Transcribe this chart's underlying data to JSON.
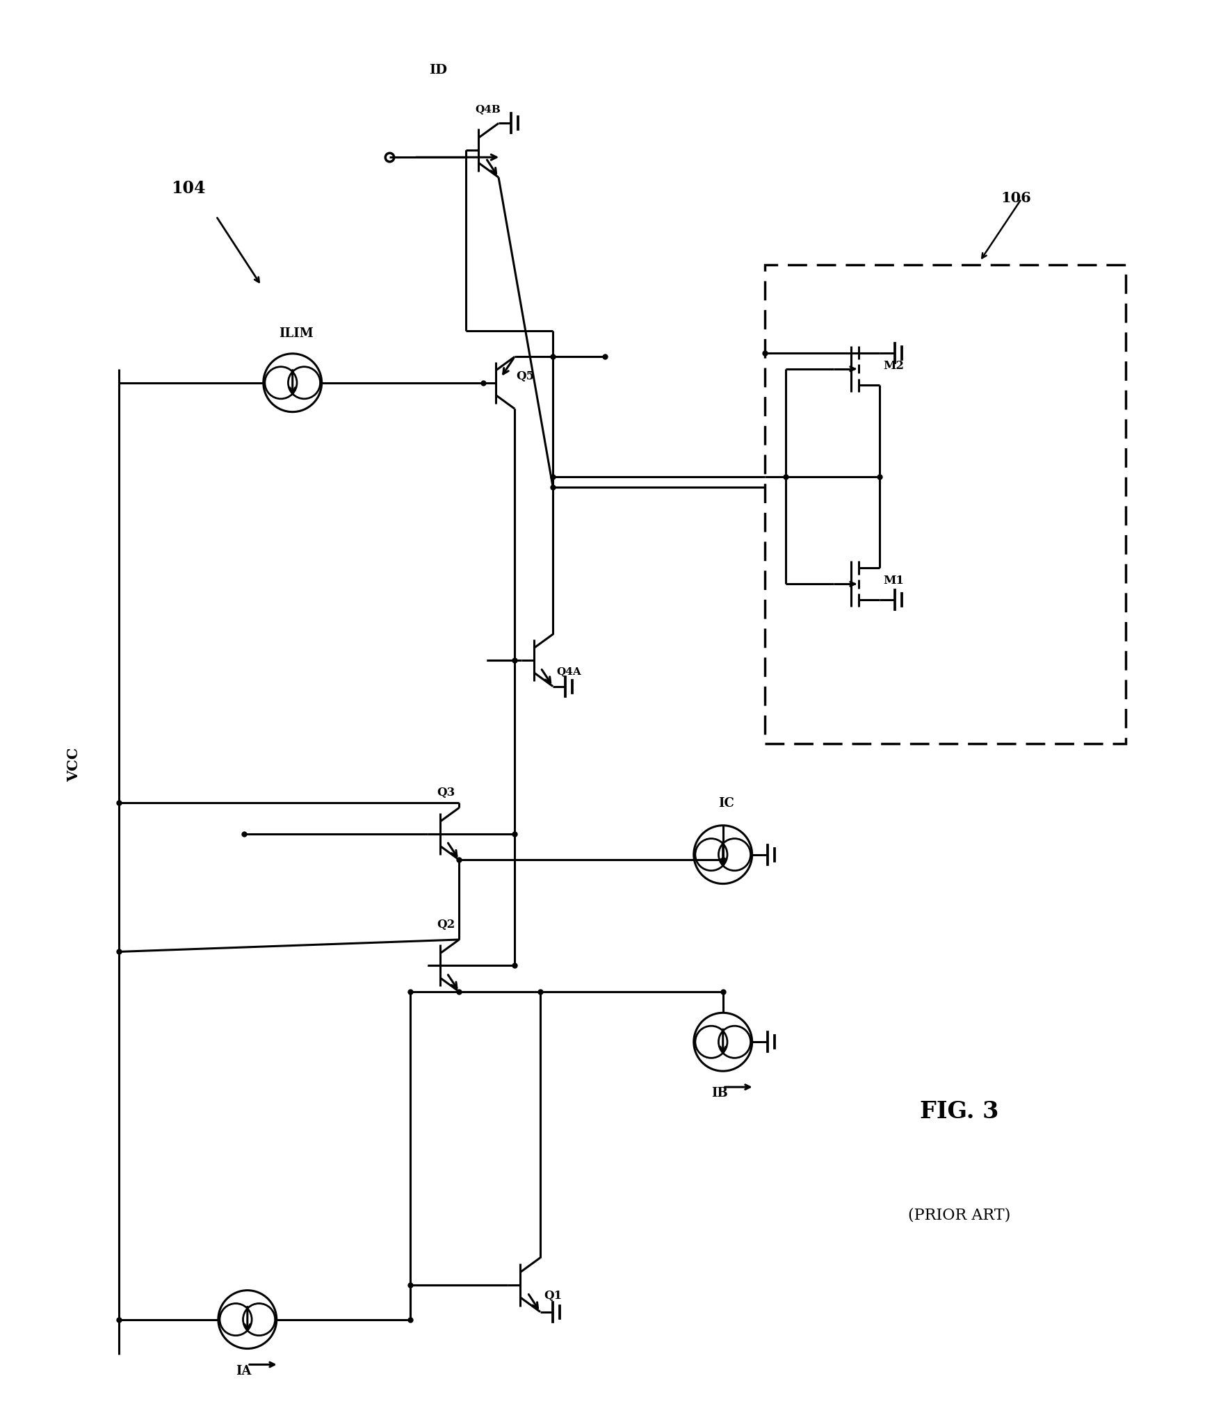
{
  "title": "FIG. 3",
  "subtitle": "(PRIOR ART)",
  "fig_label": "104",
  "box_label": "106",
  "background_color": "#ffffff",
  "line_color": "#000000",
  "lw": 2.2,
  "figsize": [
    17.46,
    20.49
  ],
  "dpi": 100
}
